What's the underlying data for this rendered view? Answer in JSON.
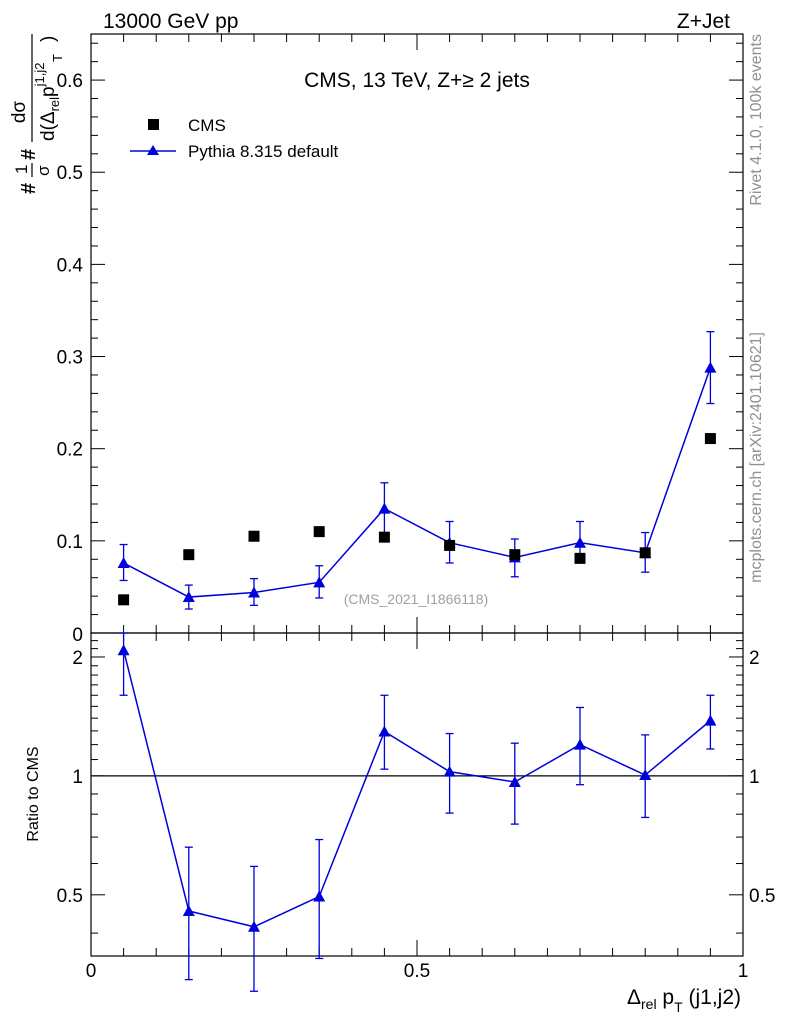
{
  "header": {
    "left_label": "13000 GeV pp",
    "right_label": "Z+Jet"
  },
  "side_labels": {
    "rivet": "Rivet 4.1.0,  100k events",
    "mcplots": "mcplots.cern.ch [arXiv:2401.10621]"
  },
  "chart_data": [
    {
      "type": "scatter",
      "panel": "main",
      "title": "CMS, 13 TeV, Z+≥ 2 jets",
      "watermark": "(CMS_2021_I1866118)",
      "ylabel_parts": {
        "frac_num": "1",
        "frac_den": "σ",
        "hash": "#",
        "deriv_num": "dσ",
        "deriv_den_d": "d(Δ",
        "rel": "rel",
        "p": "p",
        "T": "T",
        "sup": "j1,j2",
        "close": ")"
      },
      "x": [
        0.05,
        0.15,
        0.25,
        0.35,
        0.45,
        0.55,
        0.65,
        0.75,
        0.85,
        0.95
      ],
      "xlim": [
        0,
        1
      ],
      "ylim": [
        0,
        0.65
      ],
      "yticks": [
        0.1,
        0.2,
        0.3,
        0.4,
        0.5,
        0.6
      ],
      "ytick_labels": [
        "0.1",
        "0.2",
        "0.3",
        "0.4",
        "0.5",
        "0.6"
      ],
      "bottom_tick_label": "0",
      "series": [
        {
          "name": "CMS",
          "style": "markers",
          "marker": "square",
          "color": "#000000",
          "values": [
            0.036,
            0.085,
            0.105,
            0.11,
            0.104,
            0.095,
            0.085,
            0.081,
            0.087,
            0.211
          ]
        },
        {
          "name": "Pythia 8.315 default",
          "style": "line-markers",
          "marker": "triangle",
          "color": "#0000dd",
          "values": [
            0.076,
            0.039,
            0.044,
            0.055,
            0.135,
            0.098,
            0.082,
            0.098,
            0.087,
            0.288
          ],
          "err_low": [
            0.057,
            0.026,
            0.03,
            0.038,
            0.108,
            0.076,
            0.061,
            0.076,
            0.066,
            0.249
          ],
          "err_high": [
            0.096,
            0.052,
            0.059,
            0.073,
            0.163,
            0.121,
            0.102,
            0.121,
            0.109,
            0.327
          ]
        }
      ]
    },
    {
      "type": "line",
      "panel": "ratio",
      "ylabel": "Ratio to CMS",
      "xlabel_parts": {
        "delta": "Δ",
        "rel": "rel",
        "p": " p",
        "T": "T",
        "rest": " (j1,j2)"
      },
      "x": [
        0.05,
        0.15,
        0.25,
        0.35,
        0.45,
        0.55,
        0.65,
        0.75,
        0.85,
        0.95
      ],
      "xlim": [
        0,
        1
      ],
      "ylim": [
        0.35,
        2.3
      ],
      "scale": "log",
      "xticks": [
        0,
        0.5,
        1
      ],
      "xtick_labels": [
        "0",
        "0.5",
        "1"
      ],
      "yticks": [
        0.5,
        1,
        2
      ],
      "ytick_labels": [
        "0.5",
        "1",
        "2"
      ],
      "reference_line": 1,
      "series": [
        {
          "name": "Pythia 8.315 default",
          "color": "#0000dd",
          "values": [
            2.08,
            0.455,
            0.415,
            0.495,
            1.295,
            1.025,
            0.965,
            1.2,
            1.005,
            1.38
          ],
          "err_low": [
            1.6,
            0.305,
            0.285,
            0.345,
            1.04,
            0.805,
            0.755,
            0.95,
            0.785,
            1.17
          ],
          "err_high": [
            2.3,
            0.66,
            0.59,
            0.69,
            1.6,
            1.28,
            1.21,
            1.49,
            1.27,
            1.6
          ]
        }
      ]
    }
  ]
}
